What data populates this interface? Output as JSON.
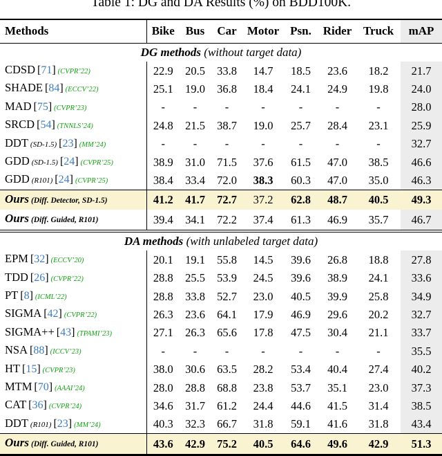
{
  "title": "Table 1: DG and DA Results (%) on BDD100K.",
  "colors": {
    "highlight_row": "#faf3d1",
    "map_column": "#ececec",
    "citation_blue": "#3e7cbe",
    "venue_green": "#12a312"
  },
  "table": {
    "columns": [
      "Methods",
      "Bike",
      "Bus",
      "Car",
      "Motor",
      "Psn.",
      "Rider",
      "Truck",
      "mAP"
    ],
    "sections": [
      {
        "label": {
          "bold": "DG methods",
          "rest": " (without target data)"
        },
        "rows": [
          {
            "method": "CDSD",
            "variant": "",
            "cite": "71",
            "venue": "(CVPR’22)",
            "values": [
              "22.9",
              "20.5",
              "33.8",
              "14.7",
              "18.5",
              "23.6",
              "18.2"
            ],
            "map": "21.7"
          },
          {
            "method": "SHADE",
            "variant": "",
            "cite": "84",
            "venue": "(ECCV’22)",
            "values": [
              "25.1",
              "19.0",
              "36.8",
              "18.4",
              "24.1",
              "24.9",
              "19.8"
            ],
            "map": "24.0"
          },
          {
            "method": "MAD",
            "variant": "",
            "cite": "75",
            "venue": "(CVPR’23)",
            "values": [
              "-",
              "-",
              "-",
              "-",
              "-",
              "-",
              "-"
            ],
            "map": "28.0"
          },
          {
            "method": "SRCD",
            "variant": "",
            "cite": "54",
            "venue": "(TNNLS’24)",
            "values": [
              "24.8",
              "21.5",
              "38.7",
              "19.0",
              "25.7",
              "28.4",
              "23.1"
            ],
            "map": "25.9"
          },
          {
            "method": "DDT",
            "variant": "(SD-1.5)",
            "cite": "23",
            "venue": "(MM’24)",
            "values": [
              "-",
              "-",
              "-",
              "-",
              "-",
              "-",
              "-"
            ],
            "map": "32.7"
          },
          {
            "method": "GDD",
            "variant": "(SD-1.5)",
            "cite": "24",
            "venue": "(CVPR’25)",
            "values": [
              "38.9",
              "31.0",
              "71.5",
              "37.6",
              "61.5",
              "47.0",
              "38.5"
            ],
            "map": "46.6"
          },
          {
            "method": "GDD",
            "variant": "(R101)",
            "cite": "24",
            "venue": "(CVPR’25)",
            "values": [
              "38.4",
              "33.4",
              "72.0",
              "38.3",
              "60.3",
              "47.0",
              "35.0"
            ],
            "map": "46.3",
            "bold": [
              false,
              false,
              false,
              true,
              false,
              false,
              false
            ],
            "bold_map": false
          }
        ],
        "ours": [
          {
            "method": "Ours",
            "variant": "(Diff. Detector, SD-1.5)",
            "cite": "",
            "venue": "",
            "values": [
              "41.2",
              "41.7",
              "72.7",
              "37.2",
              "62.8",
              "48.7",
              "40.5"
            ],
            "map": "49.3",
            "bold": [
              true,
              true,
              true,
              false,
              true,
              true,
              true
            ],
            "bold_map": true,
            "highlight": true
          },
          {
            "method": "Ours",
            "variant": "(Diff. Guided, R101)",
            "cite": "",
            "venue": "",
            "values": [
              "39.4",
              "34.1",
              "72.2",
              "37.4",
              "61.3",
              "46.9",
              "35.7"
            ],
            "map": "46.7",
            "highlight": false
          }
        ]
      },
      {
        "label": {
          "bold": "DA methods",
          "rest": " (with unlabeled target data)"
        },
        "rows": [
          {
            "method": "EPM",
            "variant": "",
            "cite": "32",
            "venue": "(ECCV’20)",
            "values": [
              "20.1",
              "19.1",
              "55.8",
              "14.5",
              "39.6",
              "26.8",
              "18.8"
            ],
            "map": "27.8"
          },
          {
            "method": "TDD",
            "variant": "",
            "cite": "26",
            "venue": "(CVPR’22)",
            "values": [
              "28.8",
              "25.5",
              "53.9",
              "24.5",
              "39.6",
              "38.9",
              "24.1"
            ],
            "map": "33.6"
          },
          {
            "method": "PT",
            "variant": "",
            "cite": "8",
            "venue": "(ICML’22)",
            "values": [
              "28.8",
              "33.8",
              "52.7",
              "23.0",
              "40.5",
              "39.9",
              "25.8"
            ],
            "map": "34.9"
          },
          {
            "method": "SIGMA",
            "variant": "",
            "cite": "42",
            "venue": "(CVPR’22)",
            "values": [
              "26.3",
              "23.6",
              "64.1",
              "17.9",
              "46.9",
              "29.6",
              "20.2"
            ],
            "map": "32.7"
          },
          {
            "method": "SIGMA++",
            "variant": "",
            "cite": "43",
            "venue": "(TPAMI’23)",
            "values": [
              "27.1",
              "26.3",
              "65.6",
              "17.8",
              "47.5",
              "30.4",
              "21.1"
            ],
            "map": "33.7"
          },
          {
            "method": "NSA",
            "variant": "",
            "cite": "88",
            "venue": "(ICCV’23)",
            "values": [
              "-",
              "-",
              "-",
              "-",
              "-",
              "-",
              "-"
            ],
            "map": "35.5"
          },
          {
            "method": "HT",
            "variant": "",
            "cite": "15",
            "venue": "(CVPR’23)",
            "values": [
              "38.0",
              "30.6",
              "63.5",
              "28.2",
              "53.4",
              "40.4",
              "27.4"
            ],
            "map": "40.2"
          },
          {
            "method": "MTM",
            "variant": "",
            "cite": "70",
            "venue": "(AAAI’24)",
            "values": [
              "28.0",
              "28.8",
              "68.8",
              "23.8",
              "53.7",
              "35.1",
              "23.0"
            ],
            "map": "37.3"
          },
          {
            "method": "CAT",
            "variant": "",
            "cite": "36",
            "venue": "(CVPR’24)",
            "values": [
              "34.6",
              "31.7",
              "61.2",
              "24.4",
              "44.6",
              "41.5",
              "31.4"
            ],
            "map": "38.5"
          },
          {
            "method": "DDT",
            "variant": "(R101)",
            "cite": "23",
            "venue": "(MM’24)",
            "values": [
              "40.3",
              "32.3",
              "66.7",
              "31.8",
              "59.1",
              "41.6",
              "31.8"
            ],
            "map": "43.4"
          }
        ],
        "ours": [
          {
            "method": "Ours",
            "variant": "(Diff. Guided, R101)",
            "cite": "",
            "venue": "",
            "values": [
              "43.6",
              "42.9",
              "75.2",
              "40.5",
              "64.6",
              "49.6",
              "42.9"
            ],
            "map": "51.3",
            "bold": [
              true,
              true,
              true,
              true,
              true,
              true,
              true
            ],
            "bold_map": true,
            "highlight": true
          }
        ]
      }
    ]
  }
}
